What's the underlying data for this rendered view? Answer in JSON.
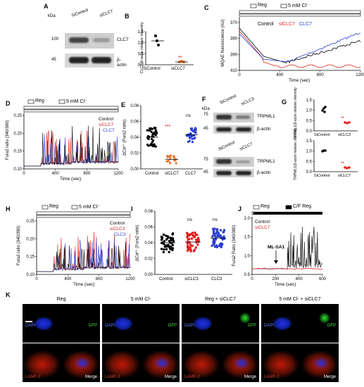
{
  "panels": {
    "A": {
      "label": "A",
      "units": "kDa",
      "mw": [
        "100",
        "45"
      ],
      "lanes": [
        "SiControl",
        "siCLC7"
      ],
      "bands": [
        "CLC7",
        "β-actin"
      ]
    },
    "B": {
      "label": "B",
      "ylabel": "CLC7/β-actin relative intensity",
      "xcats": [
        "SiControl",
        "siCLC7"
      ],
      "yticks": [
        "0.0",
        "0.5",
        "1.0",
        "1.5"
      ],
      "sig": "**"
    },
    "C": {
      "label": "C",
      "legend": [
        "Reg",
        "5 mM Cl⁻"
      ],
      "series": [
        "Control",
        "siCLC7",
        "CLC7"
      ],
      "ylabel": "MQAE fluorescence (AU)",
      "xlabel": "Time (sec)",
      "yticks": [
        "370",
        "380",
        "390",
        "410"
      ],
      "xticks": [
        "0",
        "400",
        "800",
        "1200"
      ]
    },
    "D": {
      "label": "D",
      "legend": [
        "Reg",
        "5 mM Cl⁻"
      ],
      "series": [
        "Control",
        "siCLC7",
        "CLC7"
      ],
      "ylabel": "Fura2 ratio (340/380)",
      "xlabel": "Time (sec)",
      "yticks": [
        "0.10",
        "0.15",
        "0.20",
        "0.25"
      ],
      "xticks": [
        "0",
        "400",
        "800",
        "1200"
      ]
    },
    "E": {
      "label": "E",
      "ylabel": "ΔCa²⁺ (Fura2 ratio)",
      "xcats": [
        "Control",
        "siCLC7",
        "CLC7"
      ],
      "yticks": [
        "0.00",
        "0.02",
        "0.04",
        "0.06",
        "0.08"
      ],
      "sig": [
        "***",
        "ns"
      ]
    },
    "F": {
      "label": "F",
      "units": "kDa",
      "mw": [
        "75",
        "45",
        "75",
        "45"
      ],
      "lanes1": [
        "SiControl",
        "siCLC3"
      ],
      "lanes2": [
        "SiControl",
        "siCLC7"
      ],
      "bands": [
        "TRPML1",
        "β-actin",
        "TRPML1",
        "β-actin"
      ]
    },
    "G": {
      "label": "G",
      "ylabel": "TRPML1/β-actin relative intensity",
      "xcats1": [
        "SiControl",
        "siCLC3"
      ],
      "xcats2": [
        "SiControl",
        "siCLC7"
      ],
      "yticks": [
        "0.0",
        "0.5",
        "1.0",
        "1.5"
      ],
      "sig": "**"
    },
    "H": {
      "label": "H",
      "legend": [
        "Reg",
        "5 mM Cl⁻"
      ],
      "series": [
        "Control",
        "siCLC3",
        "CLC3"
      ],
      "ylabel": "Fura2 ratio (340/380)",
      "xlabel": "Time (sec)",
      "yticks": [
        "0.10",
        "0.15",
        "0.20",
        "0.25"
      ],
      "xticks": [
        "0",
        "400",
        "800",
        "1200"
      ]
    },
    "I": {
      "label": "I",
      "ylabel": "ΔCa²⁺ (Fura2 ratio)",
      "xcats": [
        "Control",
        "siCLC3",
        "CLC3"
      ],
      "yticks": [
        "0.00",
        "0.02",
        "0.04",
        "0.06",
        "0.08"
      ],
      "sig": [
        "ns",
        "ns"
      ]
    },
    "J": {
      "label": "J",
      "legend": [
        "Reg",
        "C/F Reg"
      ],
      "series": [
        "Control",
        "siCLC7"
      ],
      "annotation": "ML-SA1",
      "ylabel": "Fura2 Ratio (340/380)",
      "xlabel": "Time (sec)",
      "yticks": [
        "0.5",
        "1.0",
        "1.5",
        "2.0"
      ],
      "xticks": [
        "0",
        "200",
        "400",
        "600"
      ]
    },
    "K": {
      "label": "K",
      "columns": [
        "Reg",
        "5 mM Cl-",
        "Reg + siCLC7",
        "5 mM Cl- + siCLC7"
      ],
      "channels": [
        "DAPI",
        "GFP",
        "LAMP-2",
        "Merge"
      ]
    }
  },
  "colors": {
    "control": "#000000",
    "si": "#e02020",
    "over": "#2a3fd0",
    "lamp": "#d02010",
    "dapi": "#1a30e0",
    "gfp": "#30d030"
  }
}
